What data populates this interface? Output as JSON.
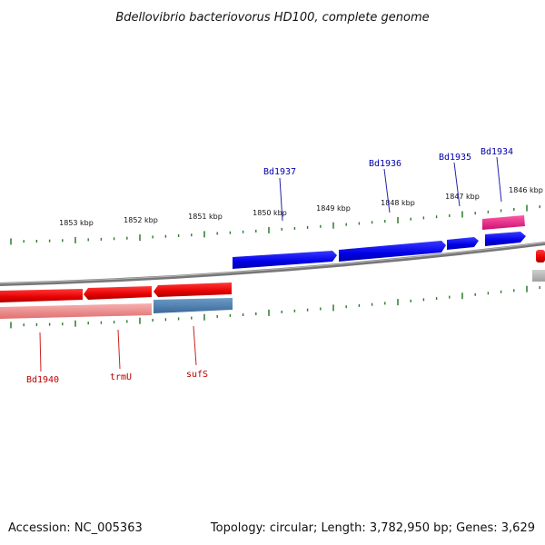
{
  "title": "Bdellovibrio bacteriovorus HD100, complete genome",
  "scale_labels": [
    "1853 kbp",
    "1852 kbp",
    "1851 kbp",
    "1850 kbp",
    "1849 kbp",
    "1848 kbp",
    "1847 kbp",
    "1846 kbp"
  ],
  "genes_forward": [
    "Bd1937",
    "Bd1936",
    "Bd1935",
    "Bd1934"
  ],
  "genes_reverse": [
    "Bd1940",
    "trmU",
    "sufS"
  ],
  "footer": {
    "accession": "Accession: NC_005363",
    "topology": "Topology: circular; Length: 3,782,950 bp; Genes: 3,629"
  },
  "colors": {
    "forward_gene": "#0000ee",
    "reverse_gene": "#ee0000",
    "reverse_gene_light": "#f08a8a",
    "reverse_gene_blue": "#4a7fb0",
    "pink_gene": "#ee2288",
    "backbone": "#7a7a7a",
    "ticks": "#2a7a2a",
    "forward_label": "#0000aa",
    "reverse_label": "#bb0000"
  }
}
